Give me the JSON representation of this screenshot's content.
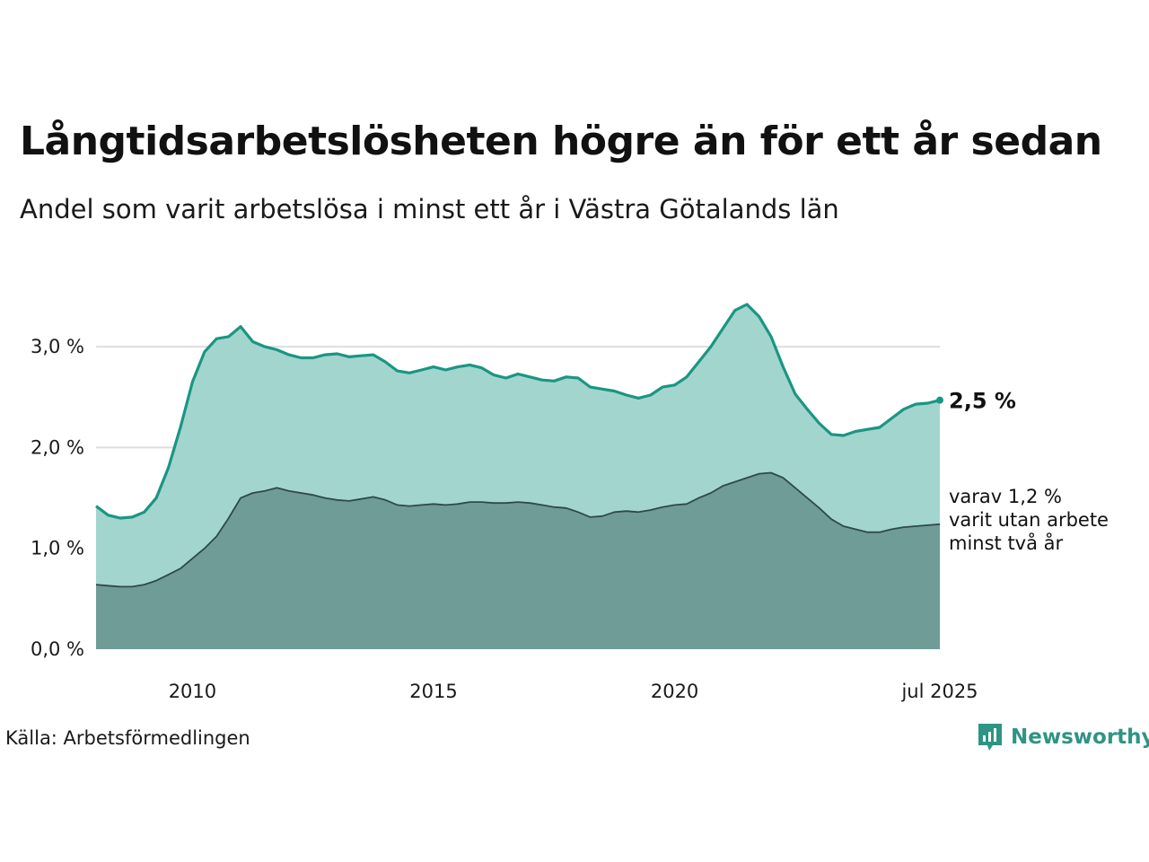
{
  "title": "Långtidsarbetslösheten högre än för ett år sedan",
  "subtitle": "Andel som varit arbetslösa i minst ett år i Västra Götalands län",
  "source": "Källa: Arbetsförmedlingen",
  "brand": {
    "name": "Newsworthy",
    "icon": "newsworthy-logo-icon",
    "color": "#2e9484"
  },
  "colors": {
    "upper_fill": "#a3d5cf",
    "upper_line": "#1a9682",
    "lower_fill": "#6f9c96",
    "lower_line": "#2e4a47",
    "grid": "#dddddd"
  },
  "chart_data": {
    "type": "area",
    "x_tick_labels": [
      "2010",
      "2015",
      "2020",
      "jul 2025"
    ],
    "x_tick_values": [
      2010.0,
      2015.0,
      2020.0,
      2025.5
    ],
    "y_tick_labels": [
      "0,0 %",
      "1,0 %",
      "2,0 %",
      "3,0 %"
    ],
    "y_tick_values": [
      0,
      1,
      2,
      3
    ],
    "xlim": [
      2008.0,
      2025.5
    ],
    "ylim": [
      0,
      3.5
    ],
    "grid": "horizontal",
    "end_label": "2,5 %",
    "sub_label_lines": [
      "varav 1,2 %",
      "varit utan arbete",
      "minst två år"
    ],
    "x": [
      2008.0,
      2008.25,
      2008.5,
      2008.75,
      2009.0,
      2009.25,
      2009.5,
      2009.75,
      2010.0,
      2010.25,
      2010.5,
      2010.75,
      2011.0,
      2011.25,
      2011.5,
      2011.75,
      2012.0,
      2012.25,
      2012.5,
      2012.75,
      2013.0,
      2013.25,
      2013.5,
      2013.75,
      2014.0,
      2014.25,
      2014.5,
      2014.75,
      2015.0,
      2015.25,
      2015.5,
      2015.75,
      2016.0,
      2016.25,
      2016.5,
      2016.75,
      2017.0,
      2017.25,
      2017.5,
      2017.75,
      2018.0,
      2018.25,
      2018.5,
      2018.75,
      2019.0,
      2019.25,
      2019.5,
      2019.75,
      2020.0,
      2020.25,
      2020.5,
      2020.75,
      2021.0,
      2021.25,
      2021.5,
      2021.75,
      2022.0,
      2022.25,
      2022.5,
      2022.75,
      2023.0,
      2023.25,
      2023.5,
      2023.75,
      2024.0,
      2024.25,
      2024.5,
      2024.75,
      2025.0,
      2025.25,
      2025.5
    ],
    "series": [
      {
        "role": "total",
        "values": [
          1.42,
          1.33,
          1.3,
          1.31,
          1.36,
          1.5,
          1.8,
          2.2,
          2.65,
          2.95,
          3.08,
          3.1,
          3.2,
          3.05,
          3.0,
          2.97,
          2.92,
          2.89,
          2.89,
          2.92,
          2.93,
          2.9,
          2.91,
          2.92,
          2.85,
          2.76,
          2.74,
          2.77,
          2.8,
          2.77,
          2.8,
          2.82,
          2.79,
          2.72,
          2.69,
          2.73,
          2.7,
          2.67,
          2.66,
          2.7,
          2.69,
          2.6,
          2.58,
          2.56,
          2.52,
          2.49,
          2.52,
          2.6,
          2.62,
          2.7,
          2.85,
          3.0,
          3.18,
          3.36,
          3.42,
          3.3,
          3.1,
          2.8,
          2.53,
          2.38,
          2.24,
          2.13,
          2.12,
          2.16,
          2.18,
          2.2,
          2.29,
          2.38,
          2.43,
          2.44,
          2.47
        ]
      },
      {
        "role": "minst två år",
        "values": [
          0.64,
          0.63,
          0.62,
          0.62,
          0.64,
          0.68,
          0.74,
          0.8,
          0.9,
          1.0,
          1.12,
          1.3,
          1.5,
          1.55,
          1.57,
          1.6,
          1.57,
          1.55,
          1.53,
          1.5,
          1.48,
          1.47,
          1.49,
          1.51,
          1.48,
          1.43,
          1.42,
          1.43,
          1.44,
          1.43,
          1.44,
          1.46,
          1.46,
          1.45,
          1.45,
          1.46,
          1.45,
          1.43,
          1.41,
          1.4,
          1.36,
          1.31,
          1.32,
          1.36,
          1.37,
          1.36,
          1.38,
          1.41,
          1.43,
          1.44,
          1.5,
          1.55,
          1.62,
          1.66,
          1.7,
          1.74,
          1.75,
          1.7,
          1.6,
          1.5,
          1.4,
          1.29,
          1.22,
          1.19,
          1.16,
          1.16,
          1.19,
          1.21,
          1.22,
          1.23,
          1.24
        ]
      }
    ]
  }
}
